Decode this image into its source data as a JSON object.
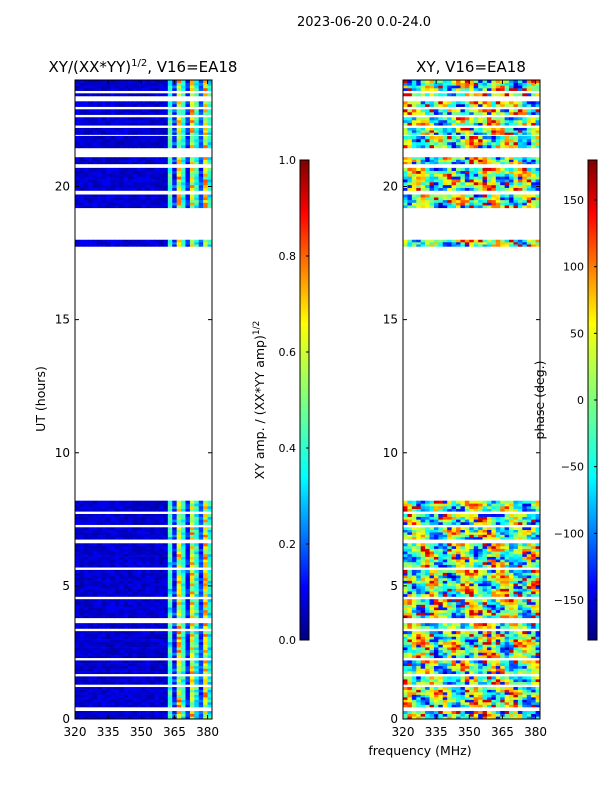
{
  "figure": {
    "suptitle": "2023-06-20 0.0-24.0",
    "shared_xlabel": "frequency (MHz)"
  },
  "colors": {
    "white": "#ffffff",
    "axis": "#000000",
    "jet": [
      "#00007f",
      "#0000ff",
      "#007fff",
      "#00ffff",
      "#7fff7f",
      "#ffff00",
      "#ff7f00",
      "#ff0000",
      "#7f0000"
    ]
  },
  "chart_data": [
    {
      "type": "heatmap",
      "title": "XY/(XX*YY)",
      "title_sup": "1/2",
      "title_tail": ", V16=EA18",
      "xlabel": "frequency (MHz)",
      "ylabel": "UT (hours)",
      "xlim": [
        320,
        382
      ],
      "ylim": [
        0,
        24
      ],
      "xticks": [
        320,
        335,
        350,
        365,
        380
      ],
      "yticks": [
        0,
        5,
        10,
        15,
        20
      ],
      "data_intervals_ut": [
        [
          0.0,
          0.3
        ],
        [
          0.45,
          1.2
        ],
        [
          1.3,
          1.6
        ],
        [
          1.7,
          2.2
        ],
        [
          2.3,
          3.3
        ],
        [
          3.4,
          3.6
        ],
        [
          3.8,
          4.5
        ],
        [
          4.6,
          5.6
        ],
        [
          5.7,
          6.6
        ],
        [
          6.75,
          7.2
        ],
        [
          7.3,
          7.7
        ],
        [
          7.8,
          8.2
        ],
        [
          17.75,
          18.0
        ],
        [
          19.2,
          19.7
        ],
        [
          19.85,
          20.7
        ],
        [
          20.85,
          21.1
        ],
        [
          21.45,
          21.9
        ],
        [
          21.95,
          22.2
        ],
        [
          22.3,
          22.6
        ],
        [
          22.7,
          22.9
        ],
        [
          23.0,
          23.2
        ],
        [
          23.4,
          23.5
        ],
        [
          23.6,
          24.0
        ]
      ],
      "channel_structure": [
        {
          "range_mhz": [
            320,
            362
          ],
          "value": 0.1,
          "label": "low amplitude"
        },
        {
          "range_mhz": [
            362,
            382
          ],
          "value": 0.55,
          "label": "striped moderate amplitude"
        }
      ],
      "colorbar": {
        "label": "XY amp. / (XX*YY amp)",
        "label_sup": "1/2",
        "range": [
          0.0,
          1.0
        ],
        "ticks": [
          "0.0",
          "0.2",
          "0.4",
          "0.6",
          "0.8",
          "1.0"
        ]
      }
    },
    {
      "type": "heatmap",
      "title": "XY, V16=EA18",
      "xlabel": "frequency (MHz)",
      "xlim": [
        320,
        382
      ],
      "ylim": [
        0,
        24
      ],
      "xticks": [
        320,
        335,
        350,
        365,
        380
      ],
      "yticks": [
        0,
        5,
        10,
        15,
        20
      ],
      "data_intervals_ut": [
        [
          0.0,
          0.3
        ],
        [
          0.45,
          1.2
        ],
        [
          1.3,
          1.6
        ],
        [
          1.7,
          2.2
        ],
        [
          2.3,
          3.3
        ],
        [
          3.4,
          3.6
        ],
        [
          3.8,
          4.5
        ],
        [
          4.6,
          5.6
        ],
        [
          5.7,
          6.6
        ],
        [
          6.75,
          7.2
        ],
        [
          7.3,
          7.7
        ],
        [
          7.8,
          8.2
        ],
        [
          17.75,
          18.0
        ],
        [
          19.2,
          19.7
        ],
        [
          19.85,
          20.7
        ],
        [
          20.85,
          21.1
        ],
        [
          21.45,
          21.9
        ],
        [
          21.95,
          22.2
        ],
        [
          22.3,
          22.6
        ],
        [
          22.7,
          22.9
        ],
        [
          23.0,
          23.2
        ],
        [
          23.4,
          23.5
        ],
        [
          23.6,
          24.0
        ]
      ],
      "channel_structure": [
        {
          "range_mhz": [
            320,
            382
          ],
          "value": 0,
          "label": "phase varies across full range"
        }
      ],
      "colorbar": {
        "label": "phase (deg.)",
        "range": [
          -180,
          180
        ],
        "ticks": [
          "−150",
          "−100",
          "−50",
          "0",
          "50",
          "100",
          "150"
        ]
      }
    }
  ]
}
